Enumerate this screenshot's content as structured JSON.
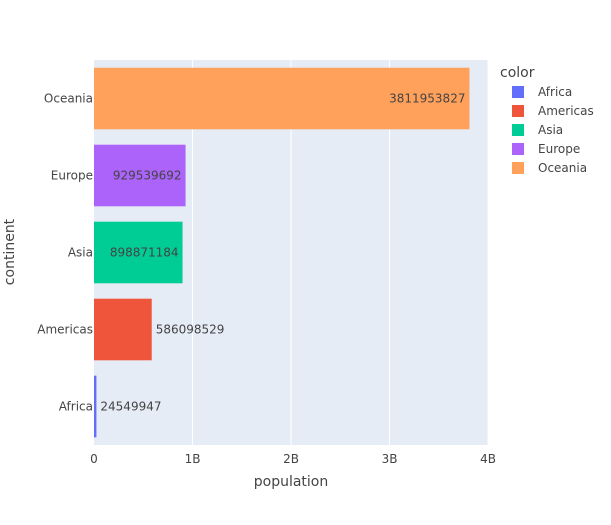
{
  "chart_data": {
    "type": "bar",
    "orientation": "horizontal",
    "categories": [
      "Africa",
      "Americas",
      "Asia",
      "Europe",
      "Oceania"
    ],
    "values": [
      24549947,
      586098529,
      898871184,
      929539692,
      3811953827
    ],
    "value_labels": [
      "24549947",
      "586098529",
      "898871184",
      "929539692",
      "3811953827"
    ],
    "colors": [
      "#636efa",
      "#EF553B",
      "#00cc96",
      "#ab63fa",
      "#FFA15A"
    ],
    "xlabel": "population",
    "ylabel": "continent",
    "xlim": [
      0,
      4000000000
    ],
    "x_ticks": [
      {
        "value": 0,
        "label": "0"
      },
      {
        "value": 1000000000,
        "label": "1B"
      },
      {
        "value": 2000000000,
        "label": "2B"
      },
      {
        "value": 3000000000,
        "label": "3B"
      },
      {
        "value": 4000000000,
        "label": "4B"
      }
    ],
    "grid": true,
    "legend": {
      "title": "color",
      "placement": "top-right",
      "entries": [
        "Africa",
        "Americas",
        "Asia",
        "Europe",
        "Oceania"
      ]
    }
  }
}
